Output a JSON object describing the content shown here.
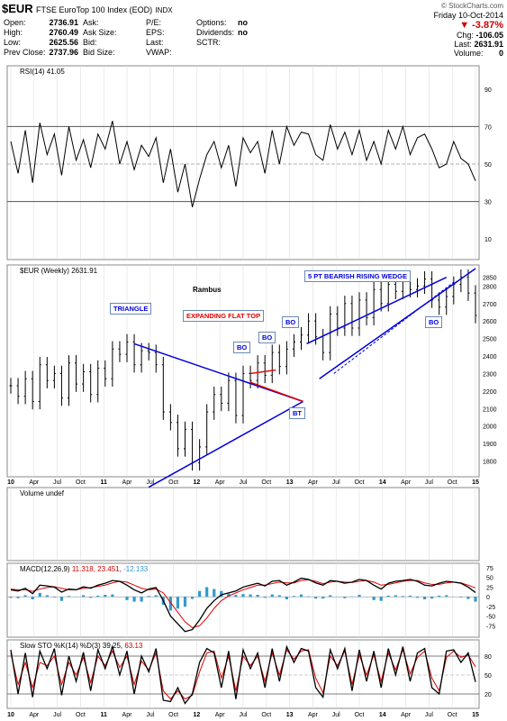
{
  "header": {
    "symbol": "$EUR",
    "name": "FTSE EuroTop 100 Index (EOD)",
    "exchange": "INDX",
    "copyright": "© StockCharts.com",
    "date": "Friday  10-Oct-2014",
    "change_pct": "-3.87%",
    "chg_label": "Chg:",
    "chg_value": "-106.05",
    "last_label": "Last:",
    "last_value": "2631.91",
    "volume_label": "Volume:",
    "volume_value": "0",
    "quotes_left": [
      {
        "label": "Open:",
        "value": "2736.91"
      },
      {
        "label": "High:",
        "value": "2760.49"
      },
      {
        "label": "Low:",
        "value": "2625.56"
      },
      {
        "label": "Prev Close:",
        "value": "2737.96"
      }
    ],
    "quotes_mid": [
      {
        "label": "Ask:",
        "value": ""
      },
      {
        "label": "Ask Size:",
        "value": ""
      },
      {
        "label": "Bid:",
        "value": ""
      },
      {
        "label": "Bid Size:",
        "value": ""
      }
    ],
    "quotes_mid2": [
      {
        "label": "P/E:",
        "value": ""
      },
      {
        "label": "EPS:",
        "value": ""
      },
      {
        "label": "Last:",
        "value": ""
      },
      {
        "label": "VWAP:",
        "value": ""
      }
    ],
    "quotes_right": [
      {
        "label": "",
        "value": ""
      },
      {
        "label": "Options:",
        "value": "no"
      },
      {
        "label": "Dividends:",
        "value": "no"
      },
      {
        "label": "SCTR:",
        "value": ""
      }
    ]
  },
  "colors": {
    "down": "#cc0000",
    "annotation_blue": "#0000dd",
    "annotation_red": "#dd0000",
    "macd_hist": "#3399cc",
    "signal": "#dd0000",
    "grid": "#dddddd"
  },
  "chart_data": [
    {
      "panel": "rsi",
      "type": "line",
      "title": "RSI(14) 41.05",
      "ylim": [
        0,
        100
      ],
      "yticks": [
        10,
        30,
        50,
        70,
        90
      ],
      "reference_lines": [
        30,
        50,
        70
      ],
      "x": [
        0,
        4,
        8,
        12,
        16,
        20,
        24,
        28,
        32,
        36,
        40,
        44,
        48,
        52,
        56,
        60,
        64,
        68,
        72,
        76,
        80,
        84,
        88,
        92,
        96,
        100,
        104,
        108,
        112,
        116,
        120,
        124,
        128,
        132,
        136,
        140,
        144,
        148,
        152,
        156,
        160,
        164,
        168,
        172,
        176,
        180,
        184,
        188,
        192,
        196,
        200,
        204,
        208,
        212,
        216,
        220,
        224,
        228,
        232,
        236,
        240,
        244,
        248,
        252,
        256
      ],
      "values": [
        62,
        45,
        68,
        40,
        72,
        55,
        66,
        44,
        70,
        52,
        63,
        48,
        66,
        58,
        73,
        50,
        62,
        47,
        60,
        54,
        64,
        40,
        58,
        35,
        50,
        27,
        42,
        55,
        62,
        48,
        60,
        38,
        64,
        56,
        62,
        45,
        68,
        50,
        70,
        60,
        67,
        66,
        55,
        52,
        71,
        58,
        67,
        55,
        68,
        52,
        62,
        50,
        68,
        58,
        70,
        55,
        64,
        66,
        58,
        48,
        50,
        62,
        53,
        50,
        41
      ]
    },
    {
      "panel": "price",
      "type": "ohlc",
      "title": "$EUR (Weekly) 2631.91",
      "subtitle": "Rambus",
      "ylim": [
        1720,
        2900
      ],
      "yticks": [
        1800,
        1900,
        2000,
        2100,
        2200,
        2300,
        2400,
        2500,
        2600,
        2700,
        2800,
        2850
      ],
      "x_labels": [
        "10",
        "Apr",
        "Jul",
        "Oct",
        "11",
        "Apr",
        "Jul",
        "Oct",
        "12",
        "Apr",
        "Jul",
        "Oct",
        "13",
        "Apr",
        "Jul",
        "Oct",
        "14",
        "Apr",
        "Jul",
        "Oct",
        "15"
      ],
      "x": [
        0,
        4,
        8,
        12,
        16,
        20,
        24,
        28,
        32,
        36,
        40,
        44,
        48,
        52,
        56,
        60,
        64,
        68,
        72,
        76,
        80,
        84,
        88,
        92,
        96,
        100,
        104,
        108,
        112,
        116,
        120,
        124,
        128,
        132,
        136,
        140,
        144,
        148,
        152,
        156,
        160,
        164,
        168,
        172,
        176,
        180,
        184,
        188,
        192,
        196,
        200,
        204,
        208,
        212,
        216,
        220,
        224,
        228,
        232,
        236,
        240,
        244,
        248,
        252,
        256
      ],
      "close": [
        2230,
        2170,
        2270,
        2140,
        2350,
        2260,
        2300,
        2160,
        2360,
        2240,
        2310,
        2180,
        2330,
        2270,
        2440,
        2410,
        2480,
        2350,
        2430,
        2420,
        2350,
        2080,
        2020,
        1870,
        1980,
        1790,
        1880,
        2080,
        2180,
        2130,
        2260,
        2060,
        2300,
        2260,
        2360,
        2290,
        2420,
        2340,
        2440,
        2480,
        2520,
        2600,
        2510,
        2420,
        2640,
        2560,
        2700,
        2560,
        2720,
        2620,
        2780,
        2700,
        2810,
        2770,
        2830,
        2780,
        2800,
        2840,
        2720,
        2680,
        2740,
        2810,
        2850,
        2760,
        2632
      ],
      "annotations": [
        "TRIANGLE",
        "EXPANDING FLAT TOP",
        "BO",
        "BO",
        "BO",
        "BT",
        "5 PT BEARISH RISING WEDGE",
        "BO"
      ]
    },
    {
      "panel": "volume",
      "type": "bar",
      "title": "Volume undef",
      "values": []
    },
    {
      "panel": "macd",
      "type": "line",
      "title": "MACD(12,26,9) 11.318, 23.451, -12.133",
      "title_parts": [
        "MACD(12,26,9)",
        "11.318,",
        "23.451,",
        "-12.133"
      ],
      "ylim": [
        -100,
        75
      ],
      "yticks": [
        75,
        50,
        25,
        0,
        -25,
        -50,
        -75
      ],
      "x": [
        0,
        4,
        8,
        12,
        16,
        20,
        24,
        28,
        32,
        36,
        40,
        44,
        48,
        52,
        56,
        60,
        64,
        68,
        72,
        76,
        80,
        84,
        88,
        92,
        96,
        100,
        104,
        108,
        112,
        116,
        120,
        124,
        128,
        132,
        136,
        140,
        144,
        148,
        152,
        156,
        160,
        164,
        168,
        172,
        176,
        180,
        184,
        188,
        192,
        196,
        200,
        204,
        208,
        212,
        216,
        220,
        224,
        228,
        232,
        236,
        240,
        244,
        248,
        252,
        256
      ],
      "series": [
        {
          "name": "MACD",
          "values": [
            18,
            15,
            22,
            8,
            30,
            28,
            25,
            12,
            20,
            18,
            26,
            22,
            30,
            35,
            42,
            40,
            30,
            18,
            10,
            20,
            24,
            -10,
            -50,
            -70,
            -90,
            -85,
            -60,
            -30,
            -10,
            5,
            10,
            15,
            25,
            30,
            35,
            28,
            40,
            42,
            30,
            38,
            48,
            45,
            36,
            30,
            42,
            40,
            35,
            38,
            45,
            42,
            30,
            20,
            35,
            40,
            42,
            45,
            40,
            30,
            28,
            35,
            40,
            38,
            35,
            25,
            11
          ]
        },
        {
          "name": "Signal",
          "values": [
            20,
            18,
            18,
            14,
            20,
            24,
            26,
            22,
            18,
            18,
            22,
            24,
            27,
            30,
            36,
            40,
            38,
            30,
            22,
            18,
            20,
            10,
            -15,
            -40,
            -65,
            -80,
            -75,
            -55,
            -30,
            -10,
            2,
            10,
            18,
            24,
            30,
            30,
            34,
            38,
            36,
            36,
            42,
            44,
            40,
            34,
            38,
            40,
            38,
            37,
            40,
            42,
            38,
            30,
            32,
            36,
            40,
            42,
            42,
            36,
            32,
            32,
            36,
            38,
            36,
            30,
            23
          ]
        }
      ]
    },
    {
      "panel": "sto",
      "type": "line",
      "title": "Slow STO %K(14) %D(3) 39.25, 63.13",
      "title_parts": [
        "Slow STO %K(14) %D(3)",
        "39.25,",
        "63.13"
      ],
      "ylim": [
        0,
        100
      ],
      "yticks": [
        20,
        50,
        80
      ],
      "reference_lines": [
        20,
        80
      ],
      "x": [
        0,
        4,
        8,
        12,
        16,
        20,
        24,
        28,
        32,
        36,
        40,
        44,
        48,
        52,
        56,
        60,
        64,
        68,
        72,
        76,
        80,
        84,
        88,
        92,
        96,
        100,
        104,
        108,
        112,
        116,
        120,
        124,
        128,
        132,
        136,
        140,
        144,
        148,
        152,
        156,
        160,
        164,
        168,
        172,
        176,
        180,
        184,
        188,
        192,
        196,
        200,
        204,
        208,
        212,
        216,
        220,
        224,
        228,
        232,
        236,
        240,
        244,
        248,
        252,
        256
      ],
      "series": [
        {
          "name": "%K",
          "values": [
            90,
            20,
            85,
            15,
            88,
            60,
            92,
            18,
            80,
            40,
            86,
            25,
            90,
            60,
            95,
            50,
            88,
            20,
            80,
            55,
            92,
            10,
            8,
            30,
            5,
            20,
            70,
            92,
            85,
            30,
            88,
            12,
            90,
            60,
            85,
            30,
            92,
            40,
            95,
            70,
            92,
            88,
            30,
            15,
            90,
            60,
            92,
            25,
            90,
            40,
            88,
            30,
            92,
            50,
            95,
            40,
            85,
            92,
            30,
            20,
            88,
            90,
            70,
            85,
            39
          ]
        },
        {
          "name": "%D",
          "values": [
            85,
            35,
            70,
            30,
            70,
            65,
            80,
            35,
            70,
            50,
            78,
            38,
            80,
            65,
            88,
            62,
            80,
            35,
            72,
            58,
            85,
            25,
            12,
            25,
            12,
            18,
            55,
            85,
            88,
            45,
            80,
            25,
            80,
            65,
            80,
            40,
            85,
            50,
            90,
            75,
            88,
            90,
            45,
            22,
            80,
            65,
            88,
            35,
            82,
            50,
            82,
            40,
            85,
            58,
            90,
            52,
            78,
            88,
            45,
            25,
            78,
            88,
            78,
            82,
            63
          ]
        }
      ]
    }
  ]
}
